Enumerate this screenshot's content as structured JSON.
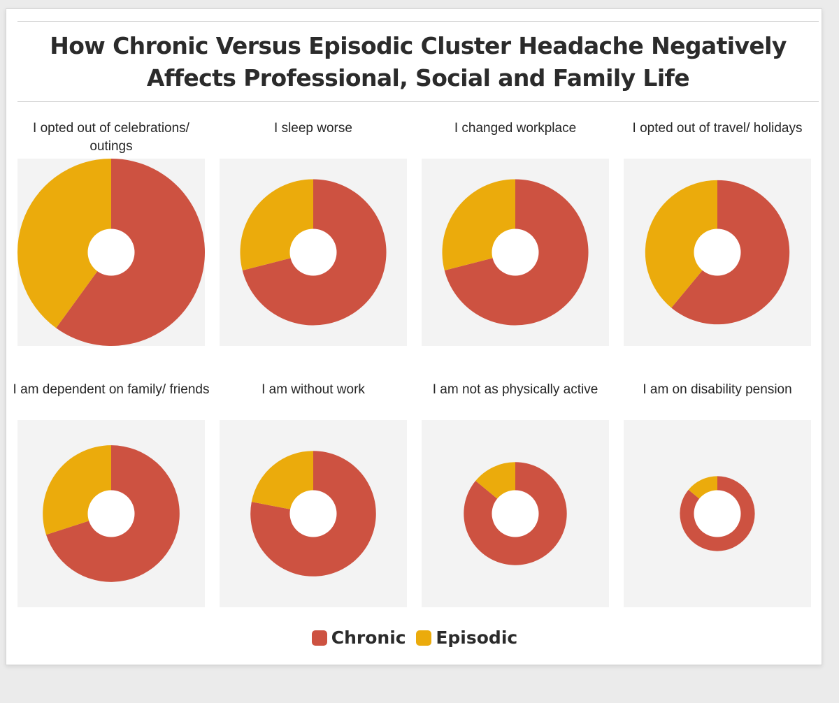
{
  "chart_data": {
    "type": "pie",
    "title": "How Chronic Versus Episodic Cluster Headache Negatively Affects Professional, Social and Family Life",
    "series_names": [
      "Chronic",
      "Episodic"
    ],
    "colors": {
      "Chronic": "#cd5241",
      "Episodic": "#ebab0c"
    },
    "charts": [
      {
        "label": "I opted out of celebrations/ outings",
        "magnitude": 1.0,
        "values": {
          "Chronic": 60,
          "Episodic": 40
        }
      },
      {
        "label": "I sleep worse",
        "magnitude": 0.78,
        "values": {
          "Chronic": 71,
          "Episodic": 29
        }
      },
      {
        "label": "I changed workplace",
        "magnitude": 0.78,
        "values": {
          "Chronic": 71,
          "Episodic": 29
        }
      },
      {
        "label": "I opted out of travel/ holidays",
        "magnitude": 0.77,
        "values": {
          "Chronic": 61,
          "Episodic": 39
        }
      },
      {
        "label": "I am dependent on family/ friends",
        "magnitude": 0.73,
        "values": {
          "Chronic": 70,
          "Episodic": 30
        }
      },
      {
        "label": "I am without work",
        "magnitude": 0.67,
        "values": {
          "Chronic": 78,
          "Episodic": 22
        }
      },
      {
        "label": "I am not as physically active",
        "magnitude": 0.55,
        "values": {
          "Chronic": 86,
          "Episodic": 14
        }
      },
      {
        "label": "I am on disability pension",
        "magnitude": 0.4,
        "values": {
          "Chronic": 86,
          "Episodic": 14
        }
      }
    ],
    "legend": [
      {
        "label": "Chronic",
        "color": "#cd5241"
      },
      {
        "label": "Episodic",
        "color": "#ebab0c"
      }
    ]
  }
}
